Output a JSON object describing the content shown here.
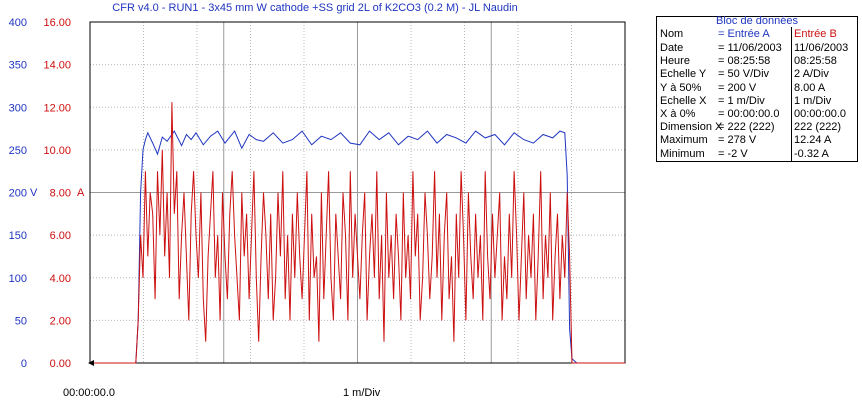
{
  "window": {
    "title": "CFR v4.0 - RUN1 - 3x45 mm W cathode +SS grid 2L of K2CO3 (0.2 M) - JL Naudin"
  },
  "colors": {
    "channel_a": "#1f35c0",
    "channel_b": "#cc1010",
    "grid": "#b8b8b8",
    "background": "#ffffff"
  },
  "scope": {
    "x_start_label": "00:00:00.0",
    "x_div_label": "1 m/Div",
    "mid_unit_a": "V",
    "mid_unit_b": "A"
  },
  "data_panel": {
    "title": "Bloc de données",
    "header": {
      "label": "Nom",
      "a": "= Entrée A",
      "b": "Entrée B"
    },
    "rows": [
      {
        "label": "Date",
        "a": "= 11/06/2003",
        "b": "11/06/2003"
      },
      {
        "label": "Heure",
        "a": "= 08:25:58",
        "b": "08:25:58"
      },
      {
        "label": "Echelle Y",
        "a": "= 50 V/Div",
        "b": "2 A/Div"
      },
      {
        "label": "Y à 50%",
        "a": "= 200 V",
        "b": "8.00 A"
      },
      {
        "label": "Echelle X",
        "a": "= 1 m/Div",
        "b": "1 m/Div"
      },
      {
        "label": "X à 0%",
        "a": "= 00:00:00.0",
        "b": "00:00:00.0"
      },
      {
        "label": "Dimension X",
        "a": "= 222 (222)",
        "b": "222 (222)"
      },
      {
        "label": "Maximum",
        "a": "= 278 V",
        "b": "12.24 A"
      },
      {
        "label": "Minimum",
        "a": "= -2 V",
        "b": "-0.32 A"
      }
    ]
  },
  "chart_data": {
    "type": "line",
    "title": "CFR v4.0 - RUN1 - 3x45 mm W cathode +SS grid 2L of K2CO3 (0.2 M) - JL Naudin",
    "xlabel": "1 m/Div",
    "x_divisions": 4,
    "xlim": [
      0,
      222
    ],
    "y_left_ticks": [
      "400",
      "350",
      "300",
      "250",
      "200",
      "150",
      "100",
      "50",
      "0"
    ],
    "y_right_ticks": [
      "16.00",
      "14.00",
      "12.00",
      "10.00",
      "8.00",
      "6.00",
      "4.00",
      "2.00",
      "0.00"
    ],
    "y_left_lim": [
      0,
      400
    ],
    "y_right_lim": [
      0,
      16
    ],
    "grid": true,
    "series": [
      {
        "name": "Entrée A",
        "unit": "V",
        "x": [
          0,
          19,
          20,
          21,
          22,
          23,
          24,
          26,
          28,
          30,
          32,
          35,
          38,
          40,
          42,
          44,
          47,
          50,
          53,
          56,
          60,
          63,
          66,
          69,
          72,
          76,
          80,
          84,
          88,
          92,
          96,
          100,
          104,
          108,
          112,
          116,
          120,
          124,
          128,
          132,
          136,
          140,
          144,
          148,
          152,
          156,
          160,
          164,
          168,
          172,
          176,
          180,
          184,
          188,
          192,
          195,
          197,
          198,
          199,
          200,
          202,
          205,
          210,
          222
        ],
        "values": [
          0,
          0,
          50,
          200,
          250,
          262,
          270,
          258,
          245,
          265,
          260,
          272,
          255,
          268,
          262,
          270,
          256,
          266,
          272,
          258,
          272,
          252,
          268,
          262,
          260,
          270,
          258,
          262,
          272,
          256,
          266,
          262,
          270,
          258,
          256,
          272,
          262,
          270,
          256,
          266,
          262,
          272,
          258,
          268,
          264,
          258,
          272,
          264,
          268,
          256,
          270,
          262,
          258,
          268,
          264,
          272,
          270,
          220,
          40,
          5,
          0,
          0,
          0,
          0
        ]
      },
      {
        "name": "Entrée B",
        "unit": "A",
        "x": [
          0,
          19,
          20,
          21,
          22,
          23,
          24,
          25,
          26,
          27,
          28,
          29,
          30,
          31,
          32,
          33,
          34,
          35,
          36,
          37,
          38,
          39,
          40,
          41,
          42,
          43,
          44,
          45,
          46,
          47,
          48,
          49,
          50,
          51,
          52,
          53,
          54,
          55,
          56,
          57,
          58,
          59,
          60,
          61,
          62,
          63,
          64,
          65,
          66,
          67,
          68,
          69,
          70,
          71,
          72,
          73,
          74,
          75,
          76,
          77,
          78,
          79,
          80,
          81,
          82,
          83,
          84,
          85,
          86,
          87,
          88,
          89,
          90,
          91,
          92,
          93,
          94,
          95,
          96,
          97,
          98,
          99,
          100,
          101,
          102,
          103,
          104,
          105,
          106,
          107,
          108,
          109,
          110,
          111,
          112,
          113,
          114,
          115,
          116,
          117,
          118,
          119,
          120,
          121,
          122,
          123,
          124,
          125,
          126,
          127,
          128,
          129,
          130,
          131,
          132,
          133,
          134,
          135,
          136,
          137,
          138,
          139,
          140,
          141,
          142,
          143,
          144,
          145,
          146,
          147,
          148,
          149,
          150,
          151,
          152,
          153,
          154,
          155,
          156,
          157,
          158,
          159,
          160,
          161,
          162,
          163,
          164,
          165,
          166,
          167,
          168,
          169,
          170,
          171,
          172,
          173,
          174,
          175,
          176,
          177,
          178,
          179,
          180,
          181,
          182,
          183,
          184,
          185,
          186,
          187,
          188,
          189,
          190,
          191,
          192,
          193,
          194,
          195,
          196,
          197,
          198,
          199,
          200,
          205,
          222
        ],
        "values": [
          0,
          0,
          2,
          6,
          4,
          9,
          5,
          8,
          7,
          3,
          9,
          6,
          10,
          5,
          8,
          4,
          12.24,
          7,
          9,
          3,
          6,
          8,
          5,
          2,
          7,
          9,
          6,
          4,
          8,
          3,
          1,
          5,
          7,
          9,
          4,
          6,
          2,
          8,
          5,
          3,
          7,
          9,
          6,
          4,
          2,
          8,
          5,
          7,
          3,
          6,
          9,
          4,
          1,
          5,
          8,
          6,
          3,
          7,
          2,
          4,
          8,
          5,
          9,
          3,
          6,
          2,
          7,
          4,
          8,
          5,
          3,
          6,
          9,
          2,
          7,
          4,
          5,
          1,
          8,
          3,
          6,
          9,
          4,
          2,
          7,
          5,
          3,
          8,
          6,
          2,
          9,
          4,
          7,
          5,
          3,
          6,
          8,
          2,
          5,
          7,
          4,
          9,
          3,
          6,
          1,
          8,
          4,
          6,
          3,
          7,
          5,
          2,
          8,
          4,
          6,
          3,
          9,
          5,
          7,
          2,
          4,
          8,
          6,
          3,
          5,
          9,
          4,
          7,
          2,
          6,
          8,
          3,
          5,
          1,
          7,
          4,
          9,
          6,
          2,
          8,
          5,
          3,
          7,
          4,
          6,
          2,
          9,
          5,
          3,
          7,
          4,
          6,
          8,
          2,
          5,
          3,
          7,
          4,
          9,
          6,
          2,
          5,
          8,
          3,
          6,
          4,
          7,
          2,
          5,
          9,
          3,
          6,
          4,
          8,
          2,
          5,
          7,
          3,
          6,
          4,
          8,
          5,
          0,
          0,
          0
        ]
      }
    ]
  }
}
